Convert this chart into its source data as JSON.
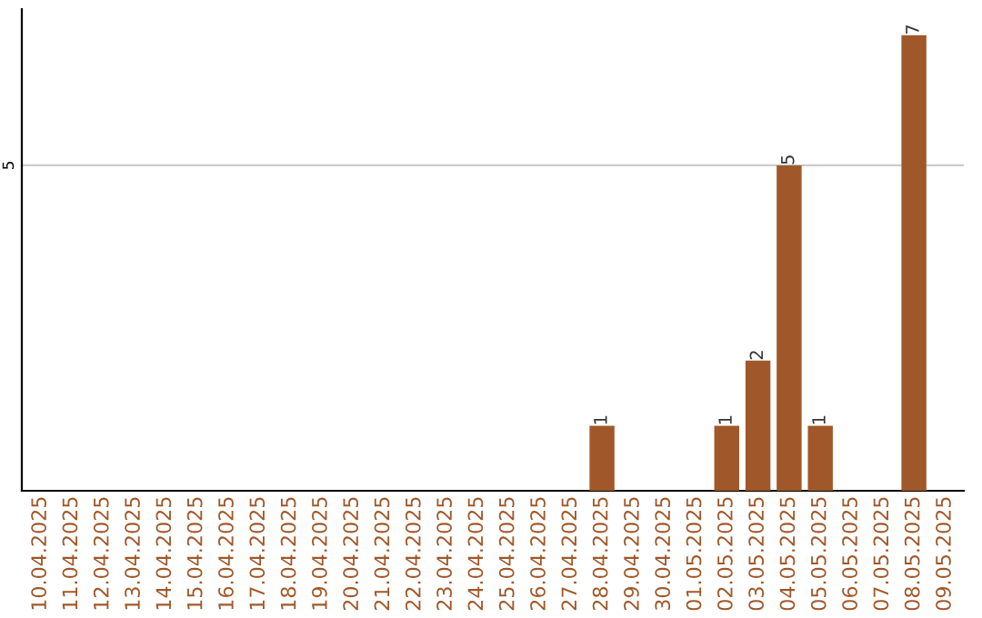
{
  "chart_data": {
    "type": "bar",
    "categories": [
      "10.04.2025",
      "11.04.2025",
      "12.04.2025",
      "13.04.2025",
      "14.04.2025",
      "15.04.2025",
      "16.04.2025",
      "17.04.2025",
      "18.04.2025",
      "19.04.2025",
      "20.04.2025",
      "21.04.2025",
      "22.04.2025",
      "23.04.2025",
      "24.04.2025",
      "25.04.2025",
      "26.04.2025",
      "27.04.2025",
      "28.04.2025",
      "29.04.2025",
      "30.04.2025",
      "01.05.2025",
      "02.05.2025",
      "03.05.2025",
      "04.05.2025",
      "05.05.2025",
      "06.05.2025",
      "07.05.2025",
      "08.05.2025",
      "09.05.2025"
    ],
    "values": [
      null,
      null,
      null,
      null,
      null,
      null,
      null,
      null,
      null,
      null,
      null,
      null,
      null,
      null,
      null,
      null,
      null,
      null,
      1,
      null,
      null,
      null,
      1,
      2,
      5,
      1,
      null,
      null,
      7,
      null
    ],
    "data_labels": true,
    "color": "#a0582a",
    "ylim": [
      0,
      7.4
    ],
    "yticks": [
      {
        "value": 0,
        "label": null
      },
      {
        "value": 5,
        "label": "5"
      }
    ],
    "grid": "y"
  }
}
